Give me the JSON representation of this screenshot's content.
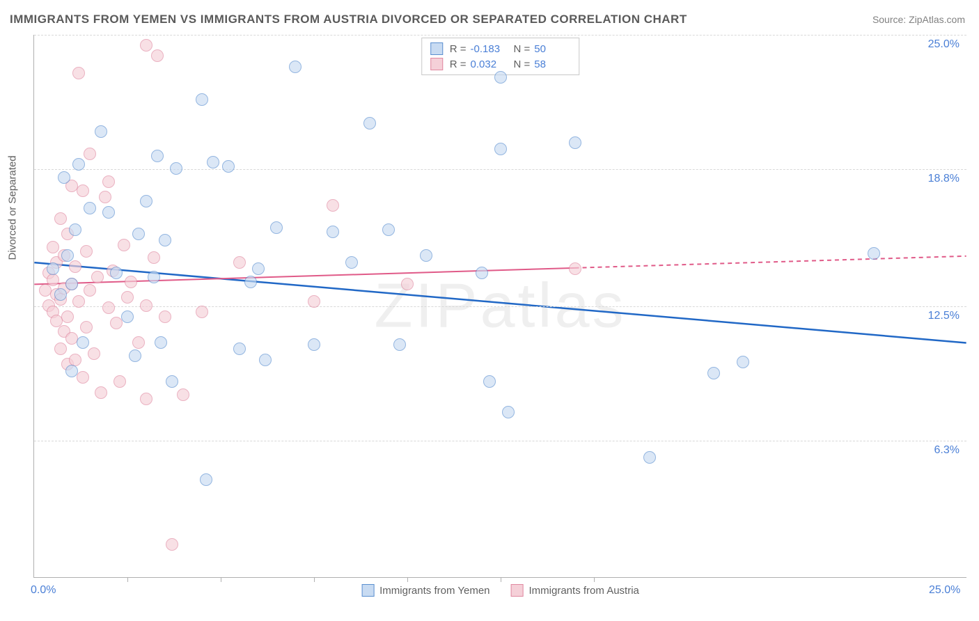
{
  "title": "IMMIGRANTS FROM YEMEN VS IMMIGRANTS FROM AUSTRIA DIVORCED OR SEPARATED CORRELATION CHART",
  "source": "Source: ZipAtlas.com",
  "watermark": "ZIPatlas",
  "y_axis_label": "Divorced or Separated",
  "chart": {
    "type": "scatter",
    "xlim": [
      0,
      25
    ],
    "ylim": [
      0,
      25
    ],
    "x_ticks": [
      0,
      2.5,
      5,
      7.5,
      10,
      12.5,
      15,
      25
    ],
    "x_tick_labels": {
      "0": "0.0%",
      "25": "25.0%"
    },
    "y_gridlines": [
      6.3,
      12.5,
      18.8,
      25.0
    ],
    "y_tick_labels": [
      "6.3%",
      "12.5%",
      "18.8%",
      "25.0%"
    ],
    "background_color": "#ffffff",
    "grid_color": "#d8d8d8",
    "axis_color": "#b0b0b0",
    "tick_label_color": "#4a7fd6",
    "point_radius": 9,
    "point_stroke_width": 1.5,
    "series": [
      {
        "name": "Immigrants from Yemen",
        "fill": "#c8dbf2",
        "stroke": "#5a8fd0",
        "fill_opacity": 0.65,
        "R": "-0.183",
        "N": "50",
        "trend": {
          "color": "#2168c6",
          "width": 2.5,
          "x1": 0,
          "y1": 14.5,
          "x2": 25,
          "y2": 10.8,
          "solid_until_x": 25
        },
        "points": [
          [
            0.5,
            14.2
          ],
          [
            0.7,
            13.0
          ],
          [
            0.8,
            18.4
          ],
          [
            0.9,
            14.8
          ],
          [
            1.0,
            13.5
          ],
          [
            1.0,
            9.5
          ],
          [
            1.1,
            16.0
          ],
          [
            1.2,
            19.0
          ],
          [
            1.5,
            17.0
          ],
          [
            1.8,
            20.5
          ],
          [
            2.0,
            16.8
          ],
          [
            2.2,
            14.0
          ],
          [
            2.5,
            12.0
          ],
          [
            2.7,
            10.2
          ],
          [
            3.0,
            17.3
          ],
          [
            3.2,
            13.8
          ],
          [
            3.3,
            19.4
          ],
          [
            3.4,
            10.8
          ],
          [
            3.5,
            15.5
          ],
          [
            3.7,
            9.0
          ],
          [
            3.8,
            18.8
          ],
          [
            4.5,
            22.0
          ],
          [
            4.6,
            4.5
          ],
          [
            4.8,
            19.1
          ],
          [
            5.2,
            18.9
          ],
          [
            5.5,
            10.5
          ],
          [
            5.8,
            13.6
          ],
          [
            6.0,
            14.2
          ],
          [
            6.5,
            16.1
          ],
          [
            7.0,
            23.5
          ],
          [
            7.5,
            10.7
          ],
          [
            8.0,
            15.9
          ],
          [
            8.5,
            14.5
          ],
          [
            9.0,
            20.9
          ],
          [
            9.5,
            16.0
          ],
          [
            9.8,
            10.7
          ],
          [
            10.5,
            14.8
          ],
          [
            12.0,
            14.0
          ],
          [
            12.5,
            23.0
          ],
          [
            12.2,
            9.0
          ],
          [
            12.7,
            7.6
          ],
          [
            12.5,
            19.7
          ],
          [
            14.5,
            20.0
          ],
          [
            16.5,
            5.5
          ],
          [
            18.2,
            9.4
          ],
          [
            19.0,
            9.9
          ],
          [
            22.5,
            14.9
          ],
          [
            1.3,
            10.8
          ],
          [
            2.8,
            15.8
          ],
          [
            6.2,
            10.0
          ]
        ]
      },
      {
        "name": "Immigrants from Austria",
        "fill": "#f5d0d8",
        "stroke": "#e088a0",
        "fill_opacity": 0.65,
        "R": "0.032",
        "N": "58",
        "trend": {
          "color": "#e05a88",
          "width": 2,
          "x1": 0,
          "y1": 13.5,
          "x2": 25,
          "y2": 14.8,
          "solid_until_x": 14.5
        },
        "points": [
          [
            0.3,
            13.2
          ],
          [
            0.4,
            12.5
          ],
          [
            0.4,
            14.0
          ],
          [
            0.5,
            13.7
          ],
          [
            0.5,
            12.2
          ],
          [
            0.5,
            15.2
          ],
          [
            0.6,
            11.8
          ],
          [
            0.6,
            14.5
          ],
          [
            0.6,
            13.0
          ],
          [
            0.7,
            16.5
          ],
          [
            0.7,
            12.8
          ],
          [
            0.7,
            10.5
          ],
          [
            0.8,
            11.3
          ],
          [
            0.8,
            14.8
          ],
          [
            0.8,
            13.3
          ],
          [
            0.9,
            9.8
          ],
          [
            0.9,
            15.8
          ],
          [
            0.9,
            12.0
          ],
          [
            1.0,
            18.0
          ],
          [
            1.0,
            13.5
          ],
          [
            1.0,
            11.0
          ],
          [
            1.1,
            10.0
          ],
          [
            1.1,
            14.3
          ],
          [
            1.2,
            23.2
          ],
          [
            1.2,
            12.7
          ],
          [
            1.3,
            17.8
          ],
          [
            1.3,
            9.2
          ],
          [
            1.4,
            15.0
          ],
          [
            1.4,
            11.5
          ],
          [
            1.5,
            19.5
          ],
          [
            1.5,
            13.2
          ],
          [
            1.6,
            10.3
          ],
          [
            1.7,
            13.8
          ],
          [
            1.8,
            8.5
          ],
          [
            1.9,
            17.5
          ],
          [
            2.0,
            18.2
          ],
          [
            2.0,
            12.4
          ],
          [
            2.1,
            14.1
          ],
          [
            2.2,
            11.7
          ],
          [
            2.3,
            9.0
          ],
          [
            2.4,
            15.3
          ],
          [
            2.5,
            12.9
          ],
          [
            2.6,
            13.6
          ],
          [
            2.8,
            10.8
          ],
          [
            3.0,
            24.5
          ],
          [
            3.0,
            12.5
          ],
          [
            3.0,
            8.2
          ],
          [
            3.2,
            14.7
          ],
          [
            3.3,
            24.0
          ],
          [
            3.5,
            12.0
          ],
          [
            3.7,
            1.5
          ],
          [
            4.0,
            8.4
          ],
          [
            4.5,
            12.2
          ],
          [
            5.5,
            14.5
          ],
          [
            7.5,
            12.7
          ],
          [
            8.0,
            17.1
          ],
          [
            10.0,
            13.5
          ],
          [
            14.5,
            14.2
          ]
        ]
      }
    ]
  },
  "legend_top": [
    {
      "swatch_fill": "#c8dbf2",
      "swatch_stroke": "#5a8fd0",
      "R": "-0.183",
      "N": "50"
    },
    {
      "swatch_fill": "#f5d0d8",
      "swatch_stroke": "#e088a0",
      "R": "0.032",
      "N": "58"
    }
  ],
  "legend_bottom": [
    {
      "swatch_fill": "#c8dbf2",
      "swatch_stroke": "#5a8fd0",
      "label": "Immigrants from Yemen"
    },
    {
      "swatch_fill": "#f5d0d8",
      "swatch_stroke": "#e088a0",
      "label": "Immigrants from Austria"
    }
  ]
}
